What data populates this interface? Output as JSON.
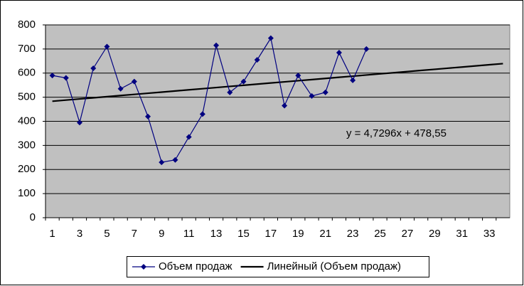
{
  "chart_data": {
    "type": "line",
    "categories": [
      1,
      null,
      3,
      null,
      5,
      null,
      7,
      null,
      9,
      null,
      11,
      null,
      13,
      null,
      15,
      null,
      17,
      null,
      19,
      null,
      21,
      null,
      23,
      null,
      25,
      null,
      27,
      null,
      29,
      null,
      31,
      null,
      33,
      null
    ],
    "series": [
      {
        "name": "Объем продаж",
        "color": "#000080",
        "marker": "diamond",
        "values": [
          590,
          580,
          395,
          620,
          710,
          535,
          565,
          420,
          230,
          240,
          335,
          430,
          715,
          520,
          565,
          655,
          745,
          465,
          590,
          505,
          520,
          685,
          570,
          700,
          null,
          null,
          null,
          null,
          null,
          null,
          null,
          null,
          null,
          null
        ]
      },
      {
        "name": "Линейный (Объем продаж)",
        "color": "#000000",
        "marker": "none",
        "values": [
          483.28,
          488.01,
          492.74,
          497.47,
          502.2,
          506.93,
          511.66,
          516.39,
          521.12,
          525.85,
          530.58,
          535.31,
          540.03,
          544.76,
          549.49,
          554.22,
          558.95,
          563.68,
          568.41,
          573.14,
          577.87,
          582.6,
          587.33,
          592.06,
          596.79,
          601.52,
          606.25,
          610.98,
          615.71,
          620.44,
          625.17,
          629.9,
          634.63,
          639.36
        ]
      }
    ],
    "annotation": "y = 4,7296x + 478,55",
    "ylim": [
      0,
      800
    ],
    "yticks": [
      0,
      100,
      200,
      300,
      400,
      500,
      600,
      700,
      800
    ],
    "grid": true,
    "plot_background": "#c0c0c0",
    "legend": "bottom"
  }
}
